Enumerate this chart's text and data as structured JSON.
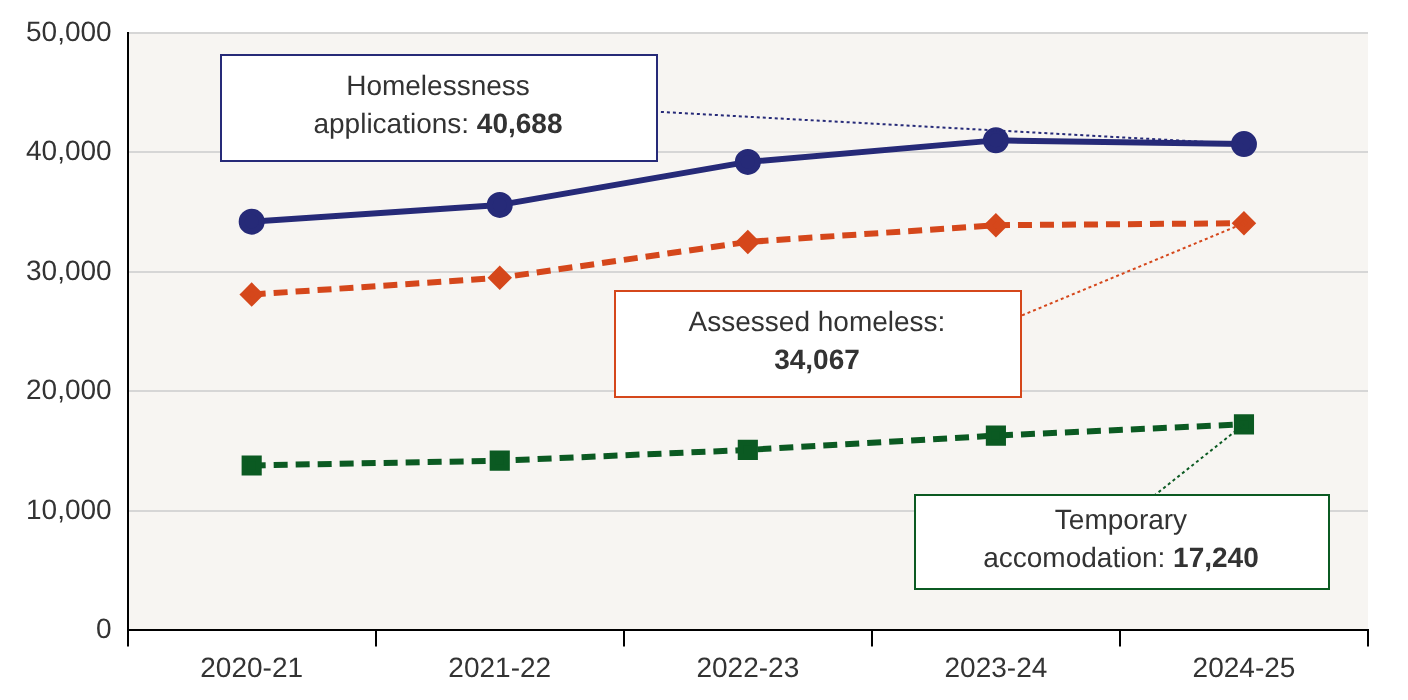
{
  "chart_data": {
    "type": "line",
    "categories": [
      "2020-21",
      "2021-22",
      "2022-23",
      "2023-24",
      "2024-25"
    ],
    "series": [
      {
        "color": "#262a78",
        "values": [
          34200,
          35600,
          39200,
          41000,
          40688
        ],
        "marker": "circle",
        "line_style": "solid"
      },
      {
        "color": "#d5471b",
        "values": [
          28100,
          29500,
          32500,
          33900,
          34067
        ],
        "marker": "diamond",
        "line_style": "dashed"
      },
      {
        "color": "#0b5a22",
        "values": [
          13800,
          14200,
          15100,
          16300,
          17240
        ],
        "marker": "square",
        "line_style": "dashed"
      }
    ],
    "annotations": [
      {
        "text": "Homelessness applications: 40,688",
        "x": "2024-25",
        "y": 40688
      },
      {
        "text": "Assessed homeless: 34,067",
        "x": "2024-25",
        "y": 34067
      },
      {
        "text": "Temporary accomodation: 17,240",
        "x": "2024-25",
        "y": 17240
      }
    ],
    "ylim": [
      0,
      50000
    ],
    "yticks": [
      {
        "value": 0,
        "label": "0"
      },
      {
        "value": 10000,
        "label": "10,000"
      },
      {
        "value": 20000,
        "label": "20,000"
      },
      {
        "value": 30000,
        "label": "30,000"
      },
      {
        "value": 40000,
        "label": "40,000"
      },
      {
        "value": 50000,
        "label": "50,000"
      }
    ],
    "grid": "y",
    "legend": false
  }
}
